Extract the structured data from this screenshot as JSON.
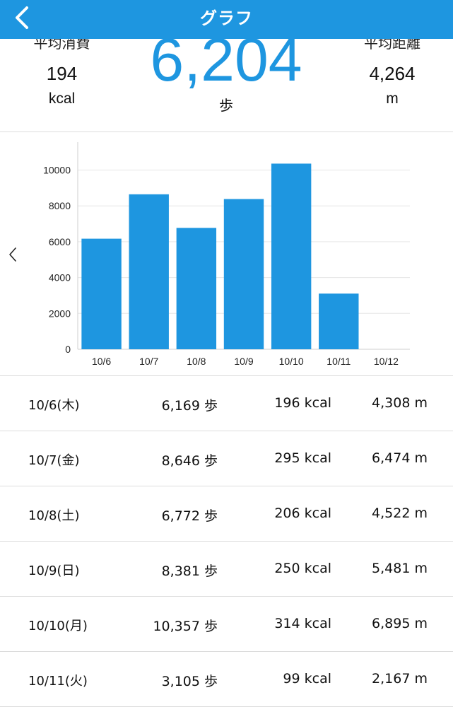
{
  "header": {
    "title": "グラフ"
  },
  "summary": {
    "avg_calories_label": "平均消費",
    "avg_calories_value": "194",
    "avg_calories_unit": "kcal",
    "avg_steps_value": "6,204",
    "avg_steps_unit": "歩",
    "avg_distance_label": "平均距離",
    "avg_distance_value": "4,264",
    "avg_distance_unit": "m"
  },
  "colors": {
    "accent": "#1e96e0",
    "bar": "#1e96e0",
    "grid": "#e6e6e6"
  },
  "chart_data": {
    "type": "bar",
    "categories": [
      "10/6",
      "10/7",
      "10/8",
      "10/9",
      "10/10",
      "10/11",
      "10/12"
    ],
    "values": [
      6169,
      8646,
      6772,
      8381,
      10357,
      3105,
      0
    ],
    "yticks": [
      0,
      2000,
      4000,
      6000,
      8000,
      10000
    ],
    "ylim": [
      0,
      11400
    ],
    "grid": true
  },
  "rows": [
    {
      "date": "10/6(木)",
      "steps": "6,169 歩",
      "kcal": "196 kcal",
      "distance": "4,308 m"
    },
    {
      "date": "10/7(金)",
      "steps": "8,646 歩",
      "kcal": "295 kcal",
      "distance": "6,474 m"
    },
    {
      "date": "10/8(土)",
      "steps": "6,772 歩",
      "kcal": "206 kcal",
      "distance": "4,522 m"
    },
    {
      "date": "10/9(日)",
      "steps": "8,381 歩",
      "kcal": "250 kcal",
      "distance": "5,481 m"
    },
    {
      "date": "10/10(月)",
      "steps": "10,357 歩",
      "kcal": "314 kcal",
      "distance": "6,895 m"
    },
    {
      "date": "10/11(火)",
      "steps": "3,105 歩",
      "kcal": "99 kcal",
      "distance": "2,167 m"
    }
  ]
}
